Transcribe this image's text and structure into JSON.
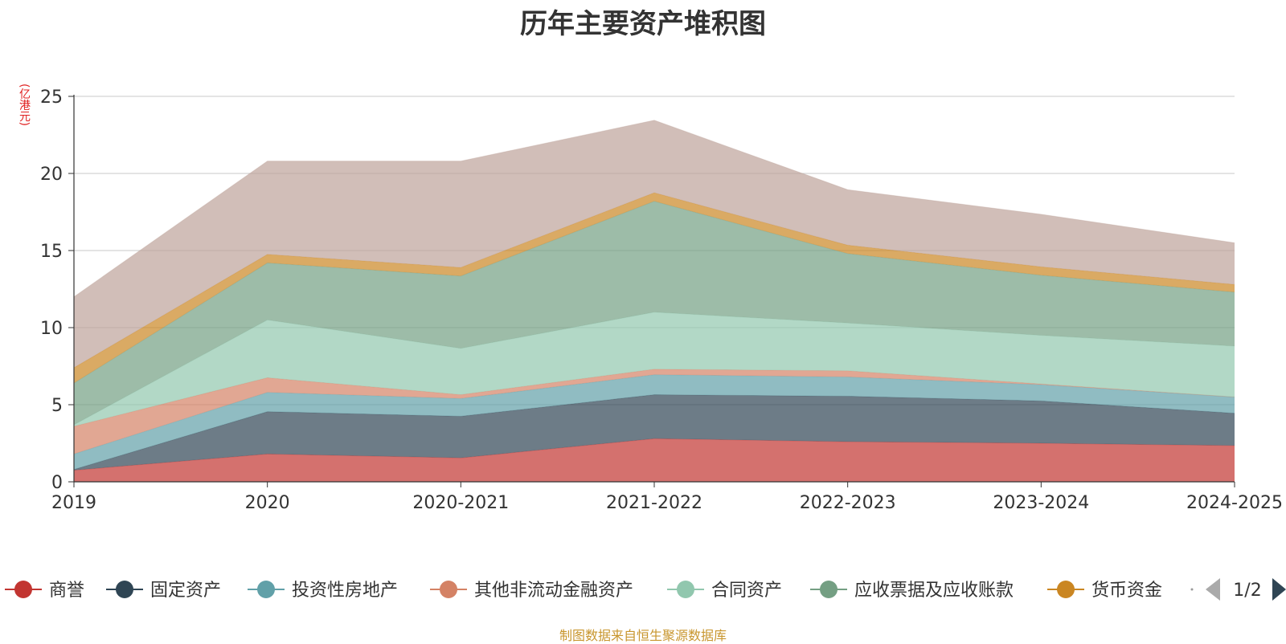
{
  "chart_data": {
    "type": "area",
    "stacked": true,
    "title": "历年主要资产堆积图",
    "unit": "(亿港元)",
    "source": "制图数据来自恒生聚源数据库",
    "x": [
      "2019",
      "2020",
      "2020-2021",
      "2021-2022",
      "2022-2023",
      "2023-2024",
      "2024-2025"
    ],
    "ylim": [
      0,
      25
    ],
    "yticks": [
      0,
      5,
      10,
      15,
      20,
      25
    ],
    "grid": true,
    "legend": {
      "placement": "bottom",
      "page": "1/2"
    },
    "series": [
      {
        "name": "商誉",
        "color": "#c23531",
        "values": [
          0.75,
          1.8,
          1.55,
          2.8,
          2.6,
          2.5,
          2.35
        ]
      },
      {
        "name": "固定资产",
        "color": "#2f4554",
        "values": [
          0.05,
          2.75,
          2.7,
          2.85,
          2.95,
          2.75,
          2.1
        ]
      },
      {
        "name": "投资性房地产",
        "color": "#61a0a8",
        "values": [
          1.0,
          1.25,
          1.15,
          1.3,
          1.25,
          1.05,
          1.05
        ]
      },
      {
        "name": "其他非流动金融资产",
        "color": "#d48265",
        "values": [
          1.8,
          0.95,
          0.25,
          0.35,
          0.4,
          0.05,
          0.0
        ]
      },
      {
        "name": "合同资产",
        "color": "#91c7ae",
        "values": [
          0.1,
          3.75,
          3.0,
          3.7,
          3.1,
          3.15,
          3.3
        ]
      },
      {
        "name": "应收票据及应收账款",
        "color": "#749f83",
        "values": [
          2.7,
          3.7,
          4.7,
          7.2,
          4.5,
          3.9,
          3.5
        ]
      },
      {
        "name": "货币资金",
        "color": "#ca8622",
        "values": [
          1.0,
          0.55,
          0.55,
          0.55,
          0.55,
          0.55,
          0.5
        ]
      },
      {
        "name": "",
        "color": "#bda29a",
        "values": [
          4.6,
          6.05,
          6.9,
          4.7,
          3.6,
          3.4,
          2.7
        ]
      }
    ]
  }
}
